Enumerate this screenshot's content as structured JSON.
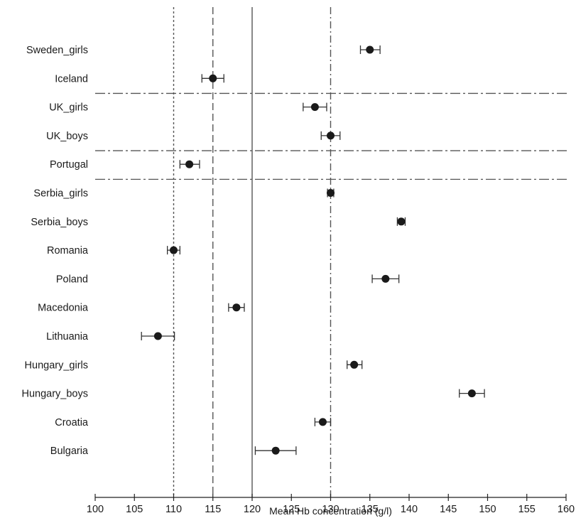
{
  "chart_data": {
    "type": "scatter",
    "title": "",
    "xlabel": "Mean Hb concentration (g/l)",
    "ylabel": "",
    "xlim": [
      100,
      160
    ],
    "xticks": [
      100,
      105,
      110,
      115,
      120,
      125,
      130,
      135,
      140,
      145,
      150,
      155,
      160
    ],
    "grid": false,
    "legend": "none",
    "error_bars": true,
    "categories": [
      "Sweden_girls",
      "Iceland",
      "UK_girls",
      "UK_boys",
      "Portugal",
      "Serbia_girls",
      "Serbia_boys",
      "Romania",
      "Poland",
      "Macedonia",
      "Lithuania",
      "Hungary_girls",
      "Hungary_boys",
      "Croatia",
      "Bulgaria"
    ],
    "points": [
      {
        "category": "Sweden_girls",
        "mean": 135.0,
        "low": 133.8,
        "high": 136.3
      },
      {
        "category": "Iceland",
        "mean": 115.0,
        "low": 113.6,
        "high": 116.4
      },
      {
        "category": "UK_girls",
        "mean": 128.0,
        "low": 126.5,
        "high": 129.5
      },
      {
        "category": "UK_boys",
        "mean": 130.0,
        "low": 128.8,
        "high": 131.2
      },
      {
        "category": "Portugal",
        "mean": 112.0,
        "low": 110.8,
        "high": 113.3
      },
      {
        "category": "Serbia_girls",
        "mean": 130.0,
        "low": 129.6,
        "high": 130.4
      },
      {
        "category": "Serbia_boys",
        "mean": 139.0,
        "low": 138.5,
        "high": 139.5
      },
      {
        "category": "Romania",
        "mean": 110.0,
        "low": 109.2,
        "high": 110.8
      },
      {
        "category": "Poland",
        "mean": 137.0,
        "low": 135.3,
        "high": 138.7
      },
      {
        "category": "Macedonia",
        "mean": 118.0,
        "low": 117.0,
        "high": 119.0
      },
      {
        "category": "Lithuania",
        "mean": 108.0,
        "low": 105.9,
        "high": 110.1
      },
      {
        "category": "Hungary_girls",
        "mean": 133.0,
        "low": 132.1,
        "high": 134.0
      },
      {
        "category": "Hungary_boys",
        "mean": 148.0,
        "low": 146.4,
        "high": 149.6
      },
      {
        "category": "Croatia",
        "mean": 129.0,
        "low": 128.0,
        "high": 130.0
      },
      {
        "category": "Bulgaria",
        "mean": 123.0,
        "low": 120.4,
        "high": 125.6
      }
    ],
    "reference_lines": [
      {
        "x": 110,
        "style": "dotted"
      },
      {
        "x": 115,
        "style": "dashed"
      },
      {
        "x": 120,
        "style": "solid"
      },
      {
        "x": 130,
        "style": "dash-dot"
      }
    ],
    "group_separators_after": [
      "Iceland",
      "UK_boys",
      "Portugal"
    ],
    "colors": {
      "marker": "#1a1a1a",
      "lines": "#333333",
      "reference": "#555555"
    }
  }
}
